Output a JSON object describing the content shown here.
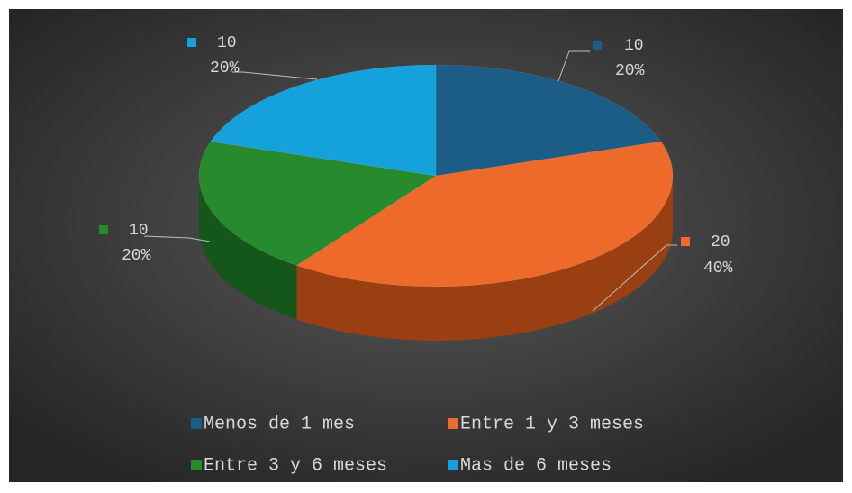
{
  "chart_data": {
    "type": "pie3d",
    "categories": [
      "Menos de 1 mes",
      "Entre 1 y 3 meses",
      "Entre 3 y 6 meses",
      "Mas de 6 meses"
    ],
    "values": [
      10,
      20,
      10,
      10
    ],
    "percent_labels": [
      "20%",
      "40%",
      "20%",
      "20%"
    ],
    "colors": [
      "#1b5d87",
      "#ed6a2a",
      "#278a2c",
      "#15a2dc"
    ],
    "side_colors": [
      "#123f5c",
      "#9a3f12",
      "#15561a",
      "#0d6c94"
    ],
    "legend": "bottom"
  }
}
